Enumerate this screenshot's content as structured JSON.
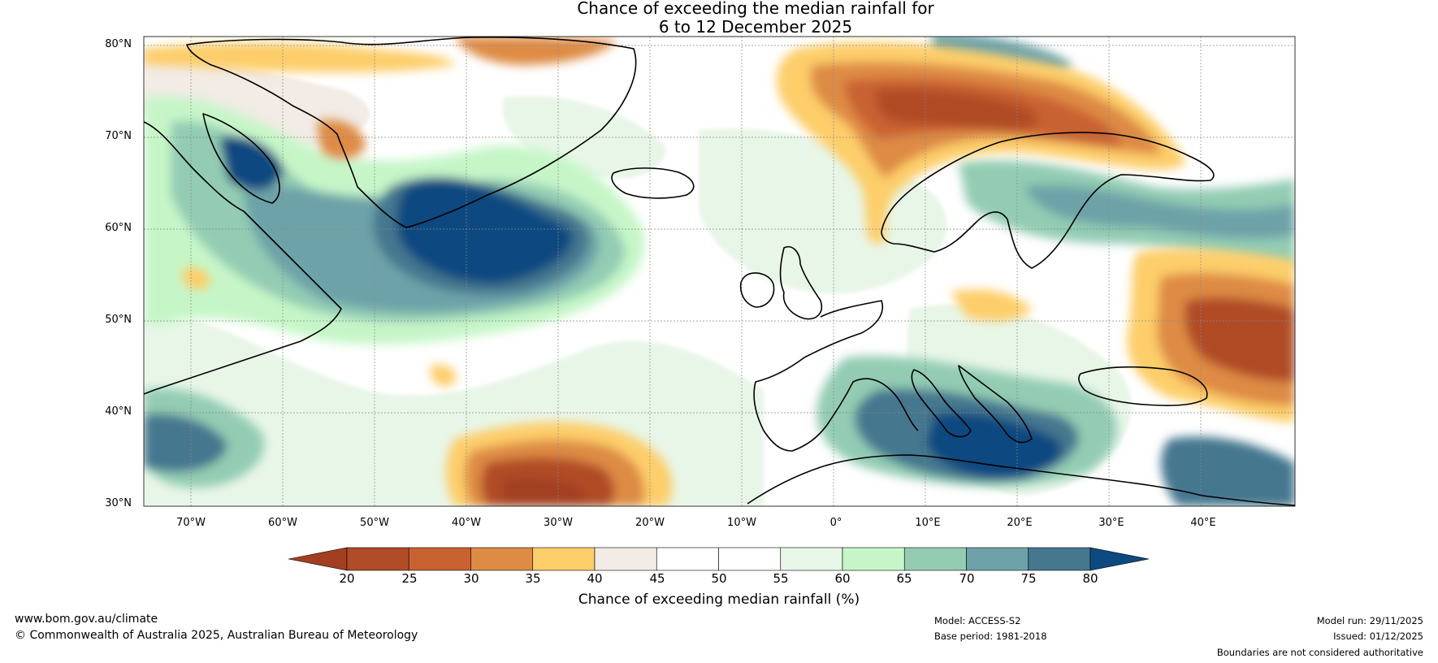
{
  "title": {
    "line1": "Chance of exceeding the median rainfall for",
    "line2": "6 to 12 December 2025"
  },
  "map": {
    "lat_labels": [
      "80°N",
      "70°N",
      "60°N",
      "50°N",
      "40°N",
      "30°N"
    ],
    "lon_labels": [
      "70°W",
      "60°W",
      "50°W",
      "40°W",
      "30°W",
      "20°W",
      "10°W",
      "0°",
      "10°E",
      "20°E",
      "30°E",
      "40°E"
    ]
  },
  "colorbar": {
    "ticks": [
      "20",
      "25",
      "30",
      "35",
      "40",
      "45",
      "50",
      "55",
      "60",
      "65",
      "70",
      "75",
      "80"
    ],
    "colors": [
      "#a23f20",
      "#b04c28",
      "#c96231",
      "#de8b45",
      "#fdce6a",
      "#f2ebe6",
      "#ffffff",
      "#ffffff",
      "#e8f6e8",
      "#c6f6c8",
      "#93ccb3",
      "#6da3a8",
      "#45778f",
      "#0d4a80"
    ],
    "label": "Chance of exceeding median rainfall (%)"
  },
  "footer": {
    "website": "www.bom.gov.au/climate",
    "copyright": "© Commonwealth of Australia 2025, Australian Bureau of Meteorology",
    "model": "Model: ACCESS-S2",
    "base_period": "Base period: 1981-2018",
    "model_run": "Model run: 29/11/2025",
    "issued": "Issued: 01/12/2025",
    "disclaimer": "Boundaries are not considered authoritative"
  }
}
